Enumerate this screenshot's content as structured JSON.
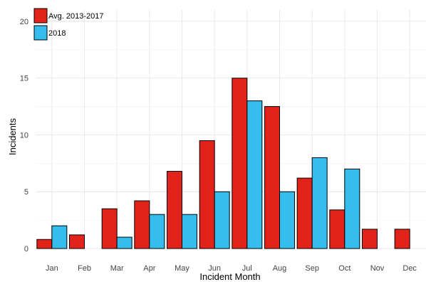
{
  "chart_data": {
    "type": "bar",
    "title": "",
    "xlabel": "Incident Month",
    "ylabel": "Incidents",
    "categories": [
      "Jan",
      "Feb",
      "Mar",
      "Apr",
      "May",
      "Jun",
      "Jul",
      "Aug",
      "Sep",
      "Oct",
      "Nov",
      "Dec"
    ],
    "series": [
      {
        "name": "Avg. 2013-2017",
        "color": "#e2231a",
        "values": [
          0.8,
          1.2,
          3.5,
          4.2,
          6.8,
          9.5,
          15,
          12.5,
          6.2,
          3.4,
          1.7,
          1.7
        ]
      },
      {
        "name": "2018",
        "color": "#35bdee",
        "values": [
          2,
          0,
          1,
          3,
          3,
          5,
          13,
          5,
          8,
          7,
          0,
          0
        ]
      }
    ],
    "ylim": [
      0,
      21
    ],
    "yticks": [
      0,
      5,
      10,
      15,
      20
    ],
    "grid": true,
    "legend_position": "top-left"
  }
}
